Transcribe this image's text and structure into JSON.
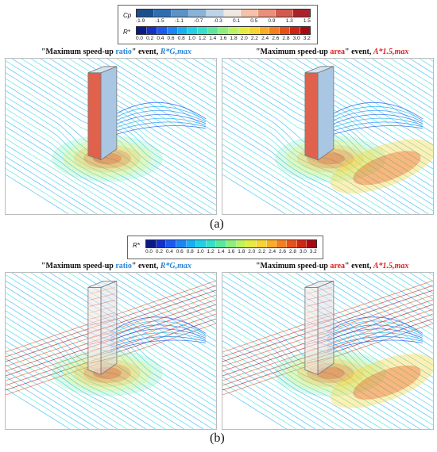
{
  "colorbar_cp": {
    "label": "Cp",
    "ticks": [
      "-1.9",
      "-1.5",
      "-1.1",
      "-0.7",
      "-0.3",
      "0.1",
      "0.5",
      "0.9",
      "1.3",
      "1.5"
    ],
    "colors": [
      "#1a4e8c",
      "#2f6fb0",
      "#5b93c8",
      "#8bb3d8",
      "#bfd3e6",
      "#efe7e2",
      "#f4c2a8",
      "#e9907a",
      "#d35a4f",
      "#a8242a"
    ]
  },
  "colorbar_r": {
    "label": "R*",
    "ticks": [
      "0.0",
      "0.2",
      "0.4",
      "0.6",
      "0.8",
      "1.0",
      "1.2",
      "1.4",
      "1.6",
      "1.8",
      "2.0",
      "2.2",
      "2.4",
      "2.6",
      "2.8",
      "3.0",
      "3.2"
    ],
    "colors": [
      "#0a1a8a",
      "#1430c8",
      "#1a5af0",
      "#1a86f6",
      "#16b0f2",
      "#22d0e6",
      "#36e0c8",
      "#5ae8a0",
      "#8ef07a",
      "#c0f25a",
      "#e6ec3e",
      "#f8d42e",
      "#fbac24",
      "#f57f1e",
      "#e8501a",
      "#d02416",
      "#a80a12"
    ]
  },
  "section_a": {
    "title_left": {
      "prefix": "\"Maximum speed-up ",
      "highlight": "ratio",
      "suffix": "\" event, ",
      "symbol": "R*G,max"
    },
    "title_right": {
      "prefix": "\"Maximum speed-up ",
      "highlight": "area",
      "suffix": "\" event, ",
      "symbol": "A*1.5,max"
    },
    "caption": "(a)"
  },
  "section_b": {
    "title_left": {
      "prefix": "\"Maximum speed-up ",
      "highlight": "ratio",
      "suffix": "\" event, ",
      "symbol": "R*G,max"
    },
    "title_right": {
      "prefix": "\"Maximum speed-up ",
      "highlight": "area",
      "suffix": "\" event, ",
      "symbol": "A*1.5,max"
    },
    "caption": "(b)"
  }
}
